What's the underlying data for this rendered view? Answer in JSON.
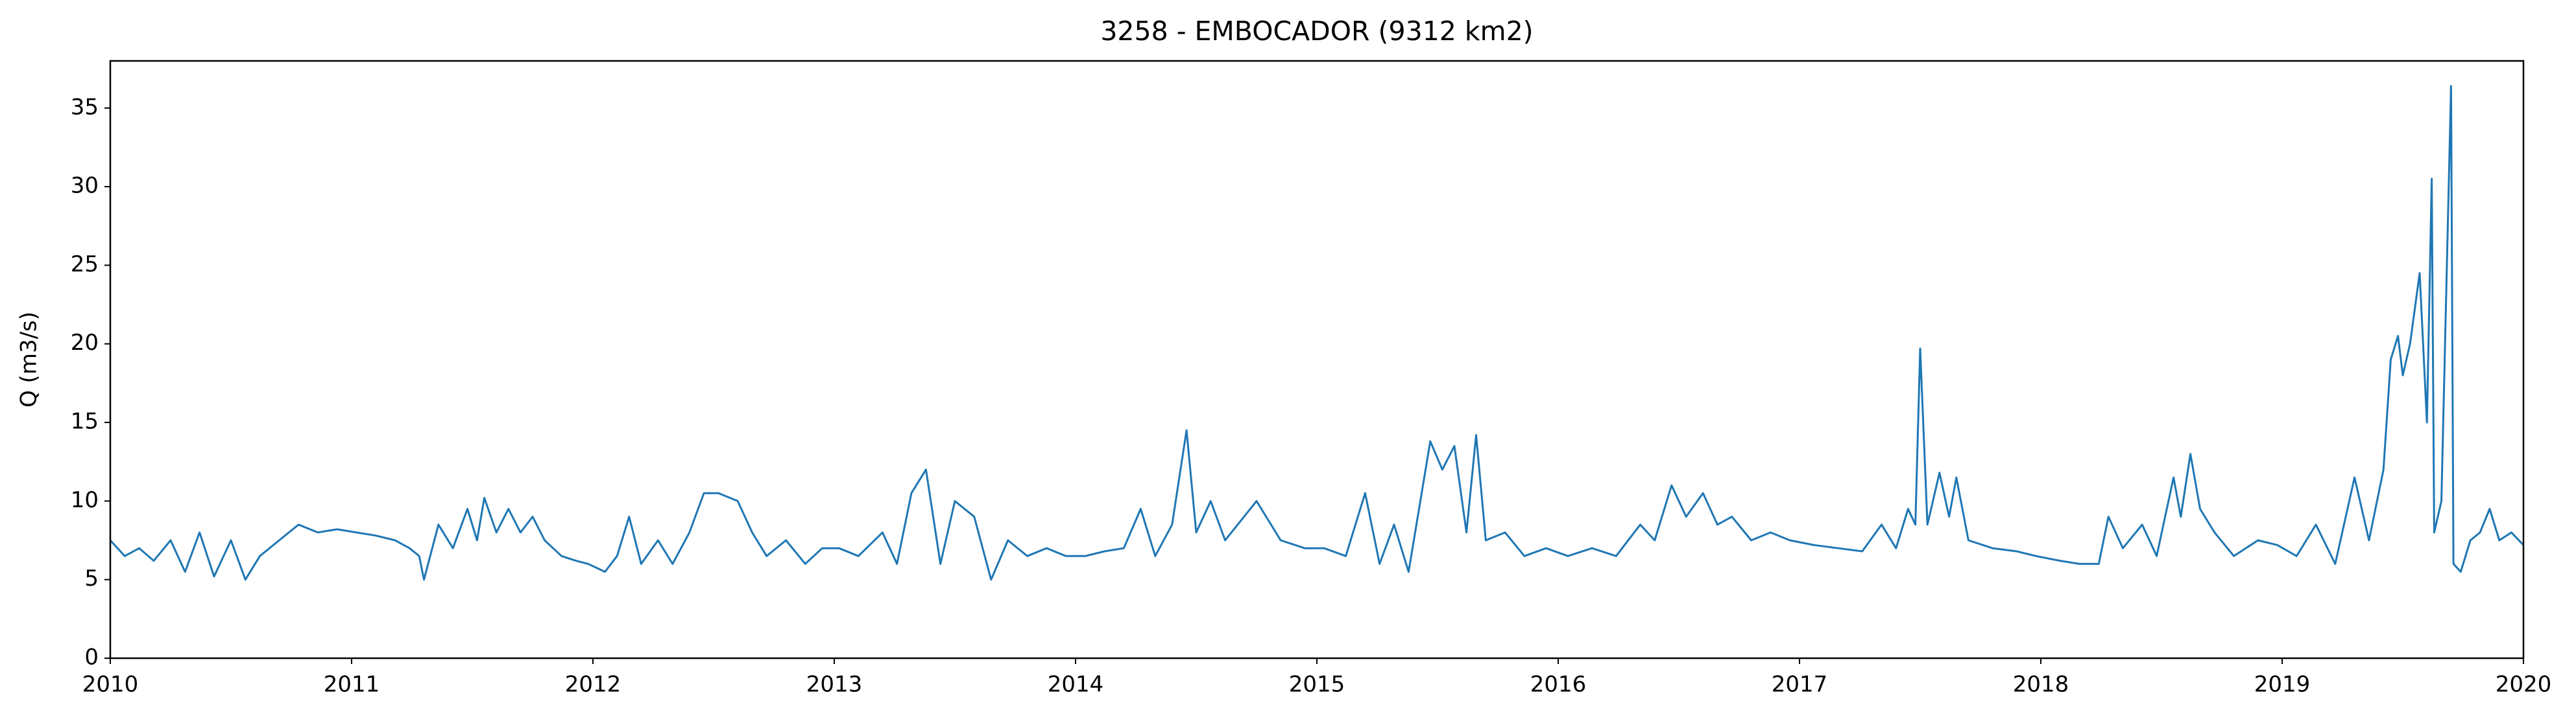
{
  "chart_data": {
    "type": "line",
    "title": "3258 - EMBOCADOR (9312 km2)",
    "y_label": "Q (m3/s)",
    "xlim": [
      2010,
      2020
    ],
    "xticks": [
      2010,
      2011,
      2012,
      2013,
      2014,
      2015,
      2016,
      2017,
      2018,
      2019,
      2020
    ],
    "ylim": [
      0,
      38
    ],
    "yticks": [
      0,
      5,
      10,
      15,
      20,
      25,
      30,
      35
    ],
    "grid": false,
    "series": [
      {
        "name": "Q",
        "color": "#1f77b4",
        "x": [
          2010.0,
          2010.06,
          2010.12,
          2010.18,
          2010.25,
          2010.31,
          2010.37,
          2010.43,
          2010.5,
          2010.56,
          2010.62,
          2010.7,
          2010.78,
          2010.86,
          2010.94,
          2011.02,
          2011.1,
          2011.18,
          2011.24,
          2011.28,
          2011.3,
          2011.36,
          2011.42,
          2011.48,
          2011.52,
          2011.55,
          2011.6,
          2011.65,
          2011.7,
          2011.75,
          2011.8,
          2011.87,
          2011.93,
          2011.98,
          2012.05,
          2012.1,
          2012.15,
          2012.2,
          2012.27,
          2012.33,
          2012.4,
          2012.46,
          2012.52,
          2012.6,
          2012.66,
          2012.72,
          2012.8,
          2012.88,
          2012.95,
          2013.02,
          2013.1,
          2013.2,
          2013.26,
          2013.32,
          2013.38,
          2013.44,
          2013.5,
          2013.58,
          2013.65,
          2013.72,
          2013.8,
          2013.88,
          2013.96,
          2014.04,
          2014.12,
          2014.2,
          2014.27,
          2014.33,
          2014.4,
          2014.46,
          2014.5,
          2014.56,
          2014.62,
          2014.75,
          2014.85,
          2014.95,
          2015.03,
          2015.12,
          2015.2,
          2015.26,
          2015.32,
          2015.38,
          2015.47,
          2015.52,
          2015.57,
          2015.62,
          2015.66,
          2015.7,
          2015.78,
          2015.86,
          2015.95,
          2016.04,
          2016.14,
          2016.24,
          2016.34,
          2016.4,
          2016.47,
          2016.53,
          2016.6,
          2016.66,
          2016.72,
          2016.8,
          2016.88,
          2016.96,
          2017.06,
          2017.16,
          2017.26,
          2017.34,
          2017.4,
          2017.45,
          2017.48,
          2017.5,
          2017.53,
          2017.58,
          2017.62,
          2017.65,
          2017.7,
          2017.8,
          2017.9,
          2017.98,
          2018.08,
          2018.16,
          2018.24,
          2018.28,
          2018.34,
          2018.42,
          2018.48,
          2018.55,
          2018.58,
          2018.62,
          2018.66,
          2018.72,
          2018.8,
          2018.9,
          2018.98,
          2019.06,
          2019.14,
          2019.22,
          2019.3,
          2019.36,
          2019.42,
          2019.45,
          2019.48,
          2019.5,
          2019.53,
          2019.57,
          2019.6,
          2019.62,
          2019.63,
          2019.66,
          2019.7,
          2019.71,
          2019.74,
          2019.78,
          2019.82,
          2019.86,
          2019.9,
          2019.95,
          2020.0
        ],
        "values": [
          7.5,
          6.5,
          7.0,
          6.2,
          7.5,
          5.5,
          8.0,
          5.2,
          7.5,
          5.0,
          6.5,
          7.5,
          8.5,
          8.0,
          8.2,
          8.0,
          7.8,
          7.5,
          7.0,
          6.5,
          5.0,
          8.5,
          7.0,
          9.5,
          7.5,
          10.2,
          8.0,
          9.5,
          8.0,
          9.0,
          7.5,
          6.5,
          6.2,
          6.0,
          5.5,
          6.5,
          9.0,
          6.0,
          7.5,
          6.0,
          8.0,
          10.5,
          10.5,
          10.0,
          8.0,
          6.5,
          7.5,
          6.0,
          7.0,
          7.0,
          6.5,
          8.0,
          6.0,
          10.5,
          12.0,
          6.0,
          10.0,
          9.0,
          5.0,
          7.5,
          6.5,
          7.0,
          6.5,
          6.5,
          6.8,
          7.0,
          9.5,
          6.5,
          8.5,
          14.5,
          8.0,
          10.0,
          7.5,
          10.0,
          7.5,
          7.0,
          7.0,
          6.5,
          10.5,
          6.0,
          8.5,
          5.5,
          13.8,
          12.0,
          13.5,
          8.0,
          14.2,
          7.5,
          8.0,
          6.5,
          7.0,
          6.5,
          7.0,
          6.5,
          8.5,
          7.5,
          11.0,
          9.0,
          10.5,
          8.5,
          9.0,
          7.5,
          8.0,
          7.5,
          7.2,
          7.0,
          6.8,
          8.5,
          7.0,
          9.5,
          8.5,
          19.7,
          8.5,
          11.8,
          9.0,
          11.5,
          7.5,
          7.0,
          6.8,
          6.5,
          6.2,
          6.0,
          6.0,
          9.0,
          7.0,
          8.5,
          6.5,
          11.5,
          9.0,
          13.0,
          9.5,
          8.0,
          6.5,
          7.5,
          7.2,
          6.5,
          8.5,
          6.0,
          11.5,
          7.5,
          12.0,
          19.0,
          20.5,
          18.0,
          20.0,
          24.5,
          15.0,
          30.5,
          8.0,
          10.0,
          36.4,
          6.0,
          5.5,
          7.5,
          8.0,
          9.5,
          7.5,
          8.0,
          7.2
        ]
      }
    ]
  }
}
